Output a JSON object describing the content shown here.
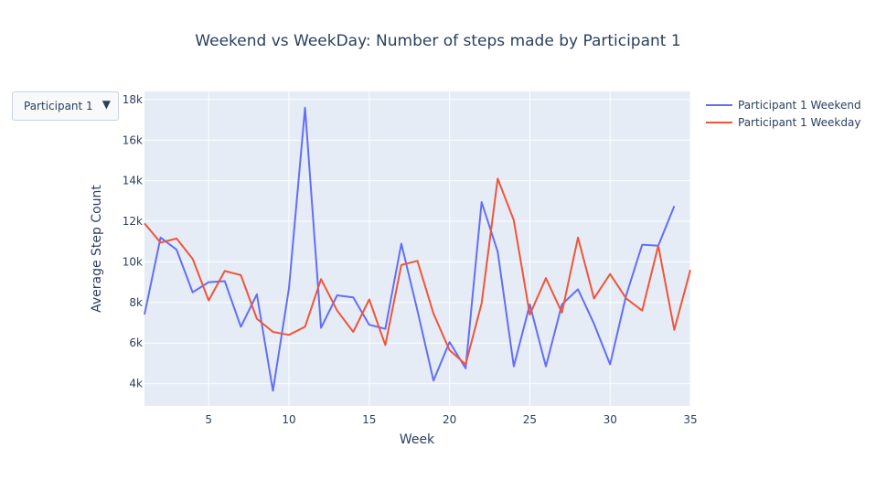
{
  "dropdown": {
    "selected": "Participant 1",
    "arrow": "▼"
  },
  "chart_data": {
    "type": "line",
    "title": "Weekend vs WeekDay: Number of steps made by Participant 1",
    "xlabel": "Week",
    "ylabel": "Average Step Count",
    "xlim": [
      1,
      35
    ],
    "ylim": [
      2900,
      18400
    ],
    "xticks": [
      5,
      10,
      15,
      20,
      25,
      30,
      35
    ],
    "yticks": [
      4000,
      6000,
      8000,
      10000,
      12000,
      14000,
      16000,
      18000
    ],
    "ytick_labels": [
      "4k",
      "6k",
      "8k",
      "10k",
      "12k",
      "14k",
      "16k",
      "18k"
    ],
    "grid": true,
    "legend_position": "top-right",
    "series": [
      {
        "name": "Participant 1 Weekend",
        "color": "#636efa",
        "x": [
          1,
          2,
          3,
          4,
          5,
          6,
          7,
          8,
          9,
          10,
          11,
          12,
          13,
          14,
          15,
          16,
          17,
          18,
          19,
          20,
          21,
          22,
          23,
          24,
          25,
          26,
          27,
          28,
          29,
          30,
          31,
          32,
          33,
          34
        ],
        "values": [
          7400,
          11200,
          10600,
          8500,
          9000,
          9050,
          6800,
          8400,
          3650,
          8700,
          17600,
          6750,
          8350,
          8250,
          6900,
          6700,
          10900,
          7600,
          4150,
          6050,
          4750,
          12950,
          10500,
          4850,
          7900,
          4850,
          7900,
          8650,
          6950,
          4950,
          8350,
          10850,
          10800,
          12750
        ]
      },
      {
        "name": "Participant 1 Weekday",
        "color": "#ef553b",
        "x": [
          1,
          2,
          3,
          4,
          5,
          6,
          7,
          8,
          9,
          10,
          11,
          12,
          13,
          14,
          15,
          16,
          17,
          18,
          19,
          20,
          21,
          22,
          23,
          24,
          25,
          26,
          27,
          28,
          29,
          30,
          31,
          32,
          33,
          34,
          35
        ],
        "values": [
          11900,
          10950,
          11150,
          10150,
          8100,
          9550,
          9350,
          7200,
          6550,
          6400,
          6800,
          9150,
          7600,
          6550,
          8150,
          5900,
          9850,
          10050,
          7450,
          5650,
          4950,
          7950,
          14100,
          12050,
          7400,
          9200,
          7500,
          11200,
          8200,
          9400,
          8200,
          7600,
          10800,
          6650,
          9600
        ]
      }
    ]
  }
}
